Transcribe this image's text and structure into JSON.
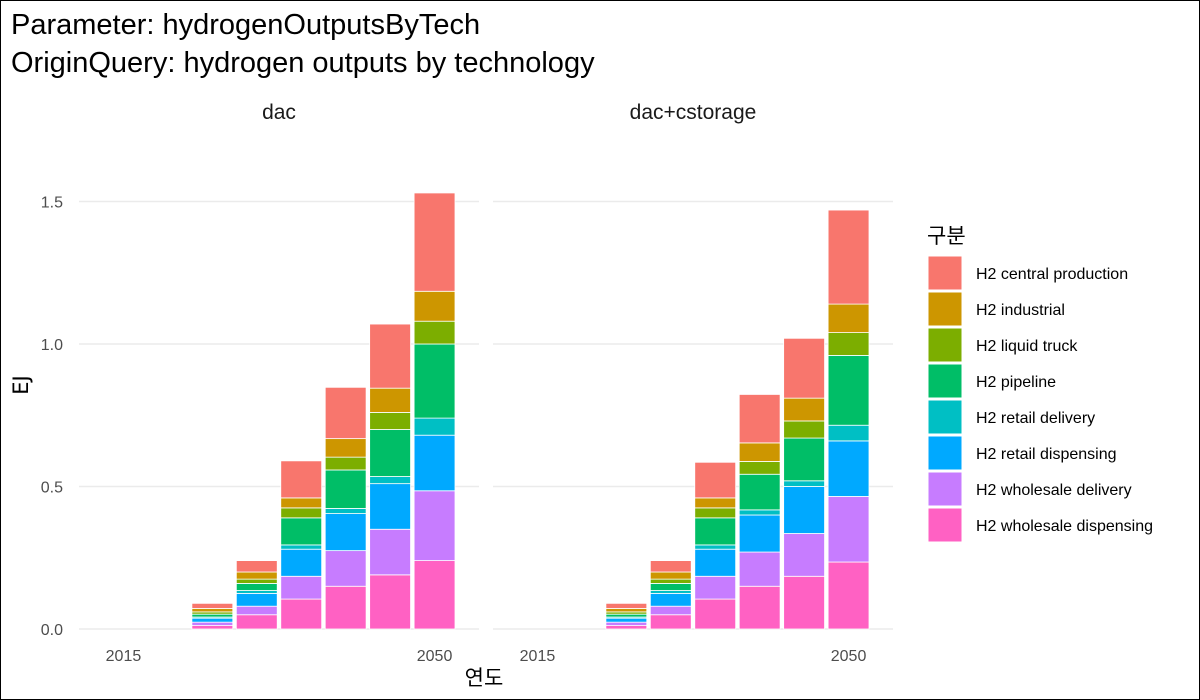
{
  "title_lines": [
    "Parameter: hydrogenOutputsByTech",
    "OriginQuery: hydrogen outputs by technology"
  ],
  "chart_data": {
    "type": "bar",
    "stacked": true,
    "facets": [
      "dac",
      "dac+cstorage"
    ],
    "x": [
      2015,
      2020,
      2025,
      2030,
      2035,
      2040,
      2045,
      2050
    ],
    "x_tick_labels": [
      "2015",
      "2050"
    ],
    "x_tick_values": [
      2015,
      2050
    ],
    "xlim": [
      2010,
      2055
    ],
    "xlabel": "연도",
    "ylabel": "EJ",
    "ylim": [
      0,
      1.6
    ],
    "y_ticks": [
      0.0,
      0.5,
      1.0,
      1.5
    ],
    "y_tick_labels": [
      "0.0",
      "0.5",
      "1.0",
      "1.5"
    ],
    "grid": true,
    "legend_title": "구분",
    "legend_position": "right",
    "series": [
      {
        "name": "H2 wholesale dispensing",
        "color": "#FF61C3",
        "values_by_facet": [
          [
            0,
            0,
            0.012,
            0.05,
            0.105,
            0.15,
            0.19,
            0.24
          ],
          [
            0,
            0,
            0.012,
            0.05,
            0.105,
            0.15,
            0.185,
            0.235
          ]
        ]
      },
      {
        "name": "H2 wholesale delivery",
        "color": "#C77CFF",
        "values_by_facet": [
          [
            0,
            0,
            0.012,
            0.03,
            0.08,
            0.125,
            0.16,
            0.245
          ],
          [
            0,
            0,
            0.012,
            0.03,
            0.08,
            0.12,
            0.15,
            0.23
          ]
        ]
      },
      {
        "name": "H2 retail dispensing",
        "color": "#00A9FF",
        "values_by_facet": [
          [
            0,
            0,
            0.014,
            0.045,
            0.095,
            0.13,
            0.16,
            0.195
          ],
          [
            0,
            0,
            0.014,
            0.045,
            0.095,
            0.13,
            0.165,
            0.195
          ]
        ]
      },
      {
        "name": "H2 retail delivery",
        "color": "#00BFC4",
        "values_by_facet": [
          [
            0,
            0,
            0.004,
            0.01,
            0.015,
            0.018,
            0.025,
            0.06
          ],
          [
            0,
            0,
            0.004,
            0.01,
            0.015,
            0.018,
            0.02,
            0.055
          ]
        ]
      },
      {
        "name": "H2 pipeline",
        "color": "#00BE67",
        "values_by_facet": [
          [
            0,
            0,
            0.01,
            0.025,
            0.095,
            0.135,
            0.165,
            0.26
          ],
          [
            0,
            0,
            0.01,
            0.025,
            0.095,
            0.125,
            0.15,
            0.245
          ]
        ]
      },
      {
        "name": "H2 liquid truck",
        "color": "#7CAE00",
        "values_by_facet": [
          [
            0,
            0,
            0.008,
            0.015,
            0.035,
            0.045,
            0.06,
            0.08
          ],
          [
            0,
            0,
            0.008,
            0.015,
            0.035,
            0.045,
            0.06,
            0.08
          ]
        ]
      },
      {
        "name": "H2 industrial",
        "color": "#CD9600",
        "values_by_facet": [
          [
            0,
            0,
            0.012,
            0.025,
            0.035,
            0.065,
            0.085,
            0.105
          ],
          [
            0,
            0,
            0.012,
            0.025,
            0.035,
            0.065,
            0.08,
            0.1
          ]
        ]
      },
      {
        "name": "H2 central production",
        "color": "#F8766D",
        "values_by_facet": [
          [
            0,
            0,
            0.018,
            0.04,
            0.13,
            0.18,
            0.225,
            0.345
          ],
          [
            0,
            0,
            0.018,
            0.04,
            0.125,
            0.17,
            0.21,
            0.33
          ]
        ]
      }
    ]
  }
}
